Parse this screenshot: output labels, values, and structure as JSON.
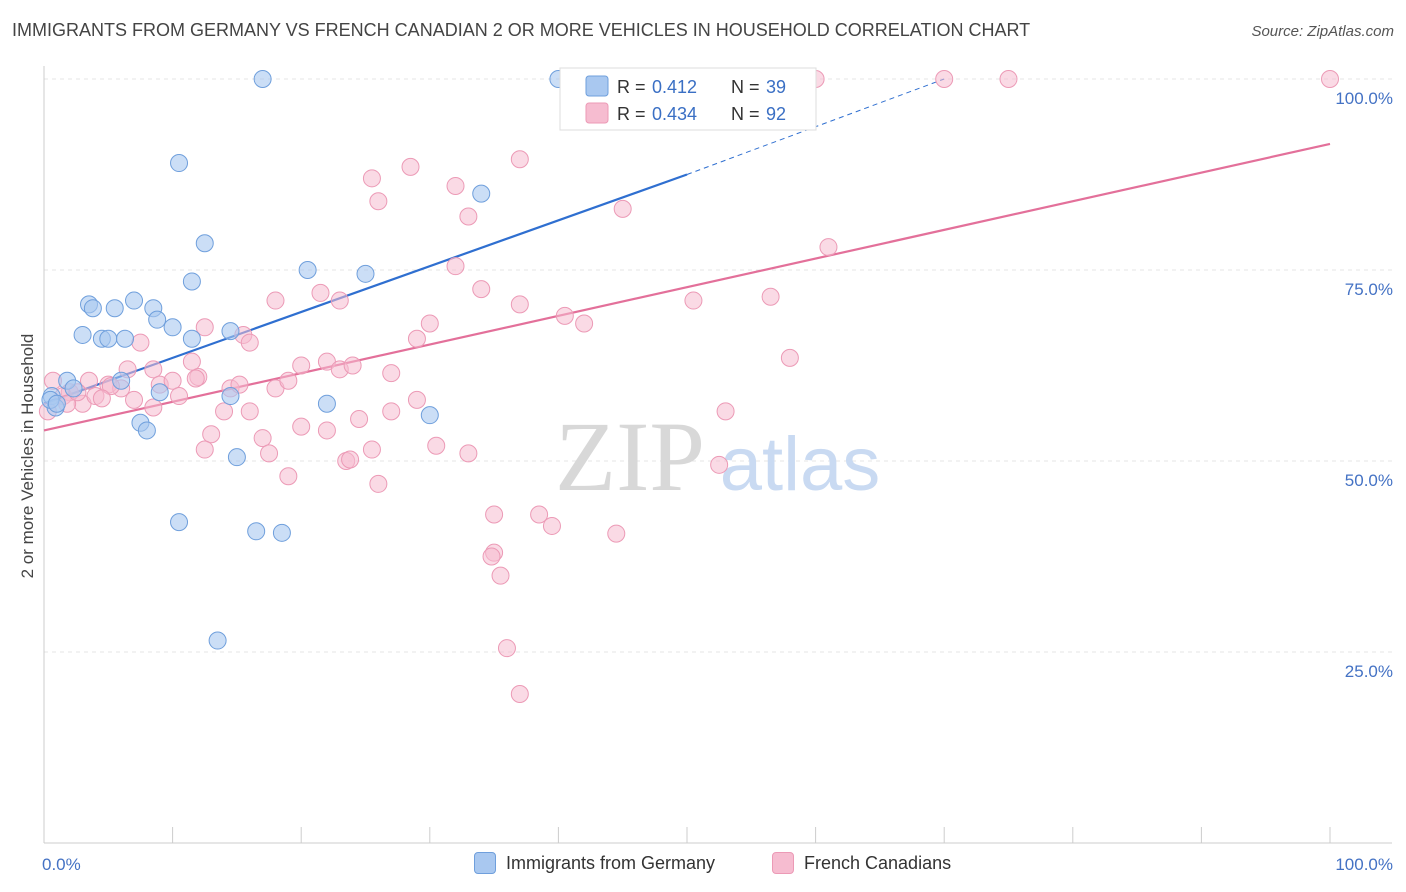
{
  "title": "IMMIGRANTS FROM GERMANY VS FRENCH CANADIAN 2 OR MORE VEHICLES IN HOUSEHOLD CORRELATION CHART",
  "source": "Source: ZipAtlas.com",
  "watermark": {
    "zip": "ZIP",
    "atlas": "atlas"
  },
  "colors": {
    "blue_fill": "#a9c8f0",
    "blue_stroke": "#6f9fdc",
    "blue_line": "#2f6fd0",
    "pink_fill": "#f6bcd0",
    "pink_stroke": "#ec9ab6",
    "pink_line": "#e3709a",
    "tick_color": "#4472c4"
  },
  "legend": [
    {
      "r_label": "R =",
      "r_value": "0.412",
      "n_label": "N =",
      "n_value": "39"
    },
    {
      "r_label": "R =",
      "r_value": "0.434",
      "n_label": "N =",
      "n_value": "92"
    }
  ],
  "chart_data": {
    "type": "scatter",
    "title": "IMMIGRANTS FROM GERMANY VS FRENCH CANADIAN 2 OR MORE VEHICLES IN HOUSEHOLD CORRELATION CHART",
    "xlabel": "",
    "ylabel": "2 or more Vehicles in Household",
    "xlim": [
      0,
      100
    ],
    "ylim": [
      0,
      100
    ],
    "x_tick_labels": [
      "0.0%",
      "100.0%"
    ],
    "y_ticks": [
      25,
      50,
      75,
      100
    ],
    "y_tick_labels": [
      "25.0%",
      "50.0%",
      "75.0%",
      "100.0%"
    ],
    "grid": true,
    "legend_position": "top-center",
    "series": [
      {
        "name": "Immigrants from Germany",
        "color": "#a9c8f0",
        "trend": {
          "x0": 0,
          "y0": 57.5,
          "x1": 50,
          "y1": 87.5,
          "dashed_x1": 70,
          "dashed_y1": 100
        },
        "points": [
          [
            17,
            100
          ],
          [
            40,
            100
          ],
          [
            10.5,
            89
          ],
          [
            34,
            85
          ],
          [
            12.5,
            78.5
          ],
          [
            20.5,
            75
          ],
          [
            25,
            74.5
          ],
          [
            11.5,
            73.5
          ],
          [
            3.5,
            70.5
          ],
          [
            3.8,
            70
          ],
          [
            5.5,
            70
          ],
          [
            7,
            71
          ],
          [
            8.5,
            70
          ],
          [
            8.8,
            68.5
          ],
          [
            10,
            67.5
          ],
          [
            14.5,
            67
          ],
          [
            3,
            66.5
          ],
          [
            4.5,
            66
          ],
          [
            5,
            66
          ],
          [
            6.3,
            66
          ],
          [
            11.5,
            66
          ],
          [
            1.8,
            60.5
          ],
          [
            2.3,
            59.5
          ],
          [
            0.6,
            58.5
          ],
          [
            0.9,
            57
          ],
          [
            9,
            59
          ],
          [
            14.5,
            58.5
          ],
          [
            22,
            57.5
          ],
          [
            30,
            56
          ],
          [
            7.5,
            55
          ],
          [
            8,
            54
          ],
          [
            15,
            50.5
          ],
          [
            10.5,
            42
          ],
          [
            16.5,
            40.8
          ],
          [
            18.5,
            40.6
          ],
          [
            13.5,
            26.5
          ],
          [
            0.5,
            58
          ],
          [
            1,
            57.5
          ],
          [
            6,
            60.5
          ]
        ]
      },
      {
        "name": "French Canadians",
        "color": "#f6bcd0",
        "trend": {
          "x0": 0,
          "y0": 54,
          "x1": 100,
          "y1": 91.5
        },
        "points": [
          [
            47,
            100
          ],
          [
            48,
            100
          ],
          [
            60,
            100
          ],
          [
            70,
            100
          ],
          [
            75,
            100
          ],
          [
            100,
            100
          ],
          [
            37,
            89.5
          ],
          [
            28.5,
            88.5
          ],
          [
            25.5,
            87
          ],
          [
            32,
            86
          ],
          [
            26,
            84
          ],
          [
            45,
            83
          ],
          [
            33,
            82
          ],
          [
            61,
            78
          ],
          [
            32,
            75.5
          ],
          [
            34,
            72.5
          ],
          [
            18,
            71
          ],
          [
            21.5,
            72
          ],
          [
            23,
            71
          ],
          [
            37,
            70.5
          ],
          [
            40.5,
            69
          ],
          [
            42,
            68
          ],
          [
            50.5,
            71
          ],
          [
            56.5,
            71.5
          ],
          [
            12.5,
            67.5
          ],
          [
            15.5,
            66.5
          ],
          [
            16,
            65.5
          ],
          [
            30,
            68
          ],
          [
            29,
            66
          ],
          [
            7.5,
            65.5
          ],
          [
            11.5,
            63
          ],
          [
            22,
            63
          ],
          [
            20,
            62.5
          ],
          [
            23,
            62
          ],
          [
            6.5,
            62
          ],
          [
            8.5,
            62
          ],
          [
            12,
            61
          ],
          [
            27,
            61.5
          ],
          [
            0.7,
            60.5
          ],
          [
            2,
            59
          ],
          [
            3.5,
            60.5
          ],
          [
            5,
            60
          ],
          [
            6,
            59.5
          ],
          [
            9,
            60
          ],
          [
            10,
            60.5
          ],
          [
            14.5,
            59.5
          ],
          [
            18,
            59.5
          ],
          [
            19,
            60.5
          ],
          [
            1.5,
            58.5
          ],
          [
            3,
            57.5
          ],
          [
            4,
            58.5
          ],
          [
            7,
            58
          ],
          [
            8.5,
            57
          ],
          [
            10.5,
            58.5
          ],
          [
            14,
            56.5
          ],
          [
            16,
            56.5
          ],
          [
            24.5,
            55.5
          ],
          [
            27,
            56.5
          ],
          [
            29,
            58
          ],
          [
            53,
            56.5
          ],
          [
            58,
            63.5
          ],
          [
            20,
            54.5
          ],
          [
            22,
            54
          ],
          [
            13,
            53.5
          ],
          [
            17,
            53
          ],
          [
            12.5,
            51.5
          ],
          [
            17.5,
            51
          ],
          [
            25.5,
            51.5
          ],
          [
            30.5,
            52
          ],
          [
            33,
            51
          ],
          [
            23.5,
            50
          ],
          [
            23.8,
            50.2
          ],
          [
            26,
            47
          ],
          [
            19,
            48
          ],
          [
            35,
            43
          ],
          [
            38.5,
            43
          ],
          [
            39.5,
            41.5
          ],
          [
            44.5,
            40.5
          ],
          [
            35,
            38
          ],
          [
            34.8,
            37.5
          ],
          [
            35.5,
            35
          ],
          [
            36,
            25.5
          ],
          [
            37,
            19.5
          ],
          [
            52.5,
            49.5
          ],
          [
            0.3,
            56.5
          ],
          [
            1.8,
            57.5
          ],
          [
            5.2,
            59.8
          ],
          [
            11.8,
            60.8
          ],
          [
            15.2,
            60
          ],
          [
            24,
            62.5
          ],
          [
            2.6,
            59
          ],
          [
            4.5,
            58.2
          ]
        ]
      }
    ]
  },
  "bottom_legend": [
    {
      "label": "Immigrants from Germany"
    },
    {
      "label": "French Canadians"
    }
  ]
}
